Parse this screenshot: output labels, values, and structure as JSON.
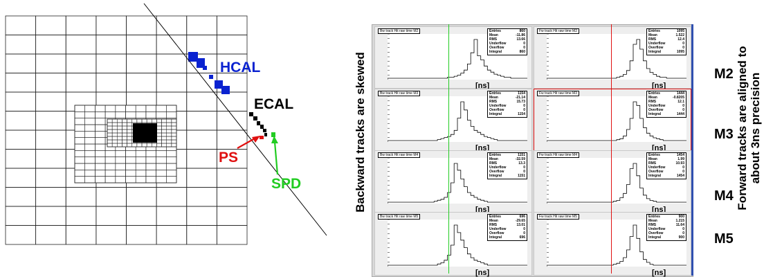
{
  "detector": {
    "labels": {
      "hcal": "HCAL",
      "ecal": "ECAL",
      "ps": "PS",
      "spd": "SPD"
    },
    "colors": {
      "hcal": "#0a22d0",
      "ecal": "#000000",
      "ps": "#e01010",
      "spd": "#22cc22"
    }
  },
  "left_caption": "Backward tracks are skewed",
  "right_caption_line1": "Forward tracks are aligned to",
  "right_caption_line2": "about 3ns precision",
  "station_labels": [
    "M2",
    "M3",
    "M4",
    "M5"
  ],
  "axis_unit": "[ns]",
  "stat_labels": [
    "Entries",
    "Mean",
    "RMS",
    "Underflow",
    "Overflow",
    "Integral"
  ],
  "panels": [
    {
      "title": "Bw track Hit raw time M2",
      "stats": [
        "860",
        "-11.86",
        "13.66",
        "0",
        "0",
        "860"
      ]
    },
    {
      "title": "Fw track Hit raw time M2",
      "stats": [
        "1095",
        "1.522",
        "12.4",
        "0",
        "0",
        "1095"
      ]
    },
    {
      "title": "Bw track Hit raw time M3",
      "stats": [
        "1154",
        "-21.14",
        "15.73",
        "0",
        "0",
        "1154"
      ]
    },
    {
      "title": "Fw track Hit raw time M3",
      "stats": [
        "1444",
        "-0.8205",
        "12.1",
        "0",
        "0",
        "1444"
      ]
    },
    {
      "title": "Bw track Hit raw time M4",
      "stats": [
        "1151",
        "-32.59",
        "13.3",
        "0",
        "0",
        "1151"
      ]
    },
    {
      "title": "Fw track Hit raw time M4",
      "stats": [
        "1454",
        "1.99",
        "10.93",
        "0",
        "0",
        "1454"
      ]
    },
    {
      "title": "Bw track Hit raw time M5",
      "stats": [
        "696",
        "-29.65",
        "13.01",
        "0",
        "0",
        "696"
      ]
    },
    {
      "title": "Fw track Hit raw time M5",
      "stats": [
        "900",
        "1.215",
        "11.64",
        "0",
        "0",
        "900"
      ]
    }
  ],
  "line_colors": {
    "backward": "#22cc22",
    "forward": "#e01010",
    "highlight": "#e01010",
    "side_bar": "#3050b0"
  }
}
